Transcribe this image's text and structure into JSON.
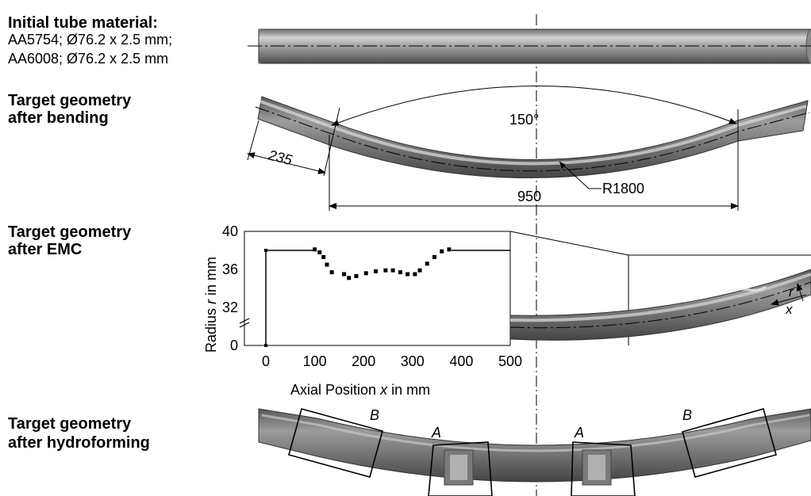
{
  "initial": {
    "title": "Initial tube material:",
    "materials": [
      "AA5754; Ø76.2 x 2.5 mm;",
      "AA6008; Ø76.2 x 2.5 mm"
    ]
  },
  "bending": {
    "title_line1": "Target geometry",
    "title_line2": "after bending",
    "angle": "150°",
    "end_length": "235",
    "span": "950",
    "radius": "R1800"
  },
  "emc": {
    "title_line1": "Target geometry",
    "title_line2": "after EMC",
    "r_marker": "r",
    "x_marker": "x"
  },
  "hydro": {
    "title_line1": "Target geometry",
    "title_line2": "after hydroforming",
    "labels": [
      "B",
      "A",
      "A",
      "B"
    ]
  },
  "chart_data": {
    "type": "scatter",
    "xlabel_prefix": "Axial Position ",
    "xlabel_var": "x",
    "xlabel_suffix": " in mm",
    "ylabel_prefix": "Radius ",
    "ylabel_var": "r",
    "ylabel_suffix": " in mm",
    "xlim": [
      -30,
      500
    ],
    "x_ticks": [
      0,
      100,
      200,
      300,
      400,
      500
    ],
    "y_ticks": [
      0,
      32,
      36,
      40
    ],
    "axis_break": true,
    "grid": true,
    "step_line": [
      [
        0,
        0
      ],
      [
        0,
        38
      ],
      [
        100,
        38
      ]
    ],
    "end_line": [
      [
        380,
        38
      ],
      [
        500,
        38
      ]
    ],
    "points": [
      [
        100,
        38.1
      ],
      [
        110,
        37.8
      ],
      [
        118,
        37.3
      ],
      [
        125,
        36.5
      ],
      [
        135,
        35.7
      ],
      [
        160,
        35.5
      ],
      [
        170,
        35.1
      ],
      [
        185,
        35.3
      ],
      [
        205,
        35.6
      ],
      [
        225,
        35.8
      ],
      [
        245,
        35.9
      ],
      [
        260,
        35.9
      ],
      [
        275,
        35.7
      ],
      [
        290,
        35.5
      ],
      [
        305,
        35.5
      ],
      [
        315,
        35.9
      ],
      [
        330,
        36.6
      ],
      [
        345,
        37.3
      ],
      [
        360,
        37.9
      ],
      [
        375,
        38.1
      ]
    ]
  }
}
